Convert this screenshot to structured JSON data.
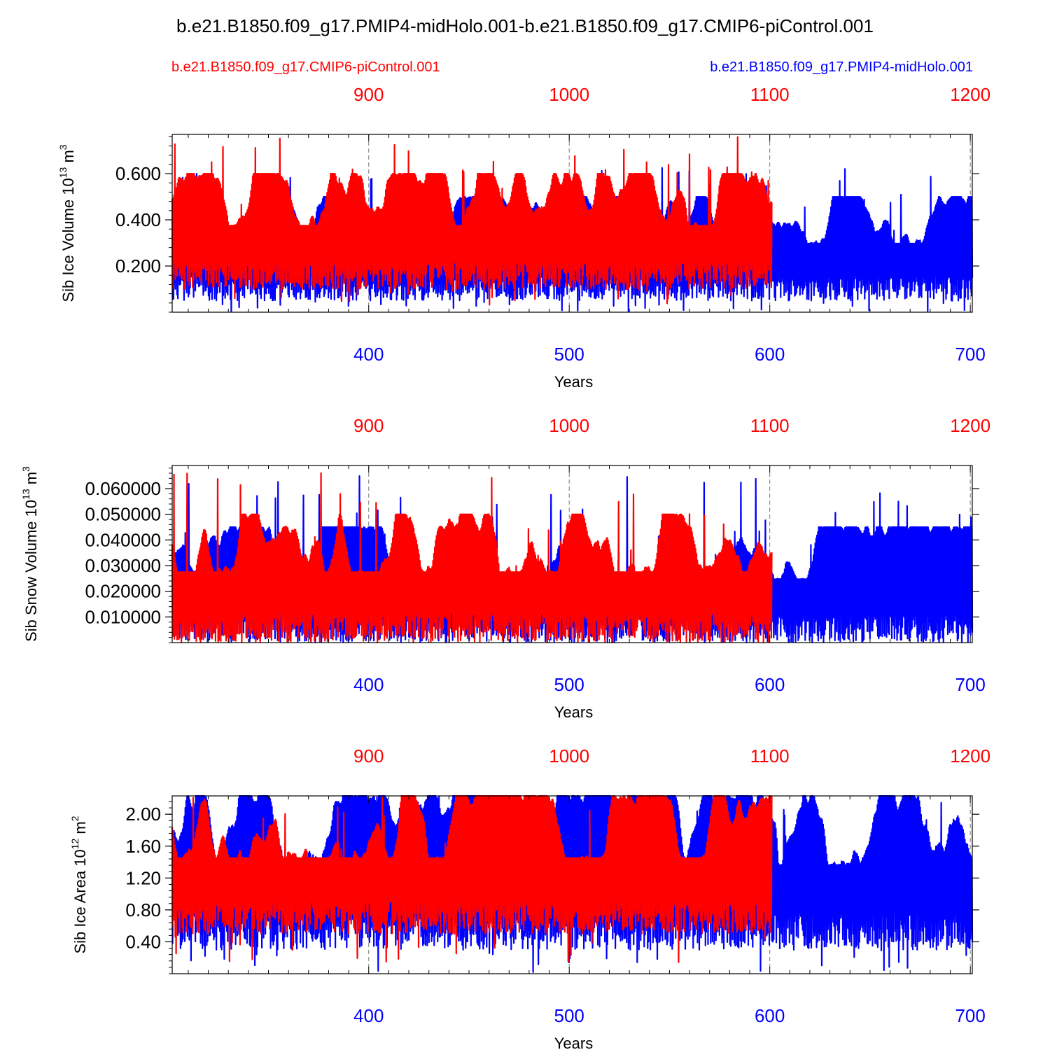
{
  "figure": {
    "title": "b.e21.B1850.f09_g17.PMIP4-midHolo.001-b.e21.B1850.f09_g17.CMIP6-piControl.001",
    "legend_red": "b.e21.B1850.f09_g17.CMIP6-piControl.001",
    "legend_blue": "b.e21.B1850.f09_g17.PMIP4-midHolo.001"
  },
  "colors": {
    "red_series": "#ff0000",
    "blue_series": "#0000ff",
    "axis": "#000000"
  },
  "chart_data": [
    {
      "type": "line",
      "ylabel": "Sib Ice Volume 10^13 m^3",
      "ylabel_main": "Sib Ice Volume 10",
      "ylabel_exp": "13",
      "ylabel_unit": " m",
      "ylabel_unit_exp": "3",
      "xlabel": "Years",
      "ylim": [
        0.0,
        0.77
      ],
      "yticks": [
        0.2,
        0.4,
        0.6
      ],
      "ytick_labels": [
        "0.200",
        "0.400",
        "0.600"
      ],
      "bottom_xlim": [
        302,
        701
      ],
      "bottom_xticks": [
        400,
        500,
        600,
        700
      ],
      "bottom_xtick_labels": [
        "400",
        "500",
        "600",
        "700"
      ],
      "top_xlim": [
        802,
        1201
      ],
      "top_xticks": [
        900,
        1000,
        1100,
        1200
      ],
      "top_xtick_labels": [
        "900",
        "1000",
        "1100",
        "1200"
      ],
      "series": [
        {
          "name": "b.e21.B1850.f09_g17.PMIP4-midHolo.001",
          "color": "blue",
          "x_range": [
            302,
            701
          ],
          "min": 0.0,
          "max": 0.63,
          "typical_low": 0.05,
          "typical_high": 0.5
        },
        {
          "name": "b.e21.B1850.f09_g17.CMIP6-piControl.001",
          "color": "red",
          "x_range": [
            802,
            1101
          ],
          "min": 0.03,
          "max": 0.77,
          "typical_low": 0.1,
          "typical_high": 0.6
        }
      ]
    },
    {
      "type": "line",
      "ylabel": "Sib Snow Volume 10^13 m^3",
      "ylabel_main": "Sib Snow Volume 10",
      "ylabel_exp": "13",
      "ylabel_unit": " m",
      "ylabel_unit_exp": "3",
      "xlabel": "Years",
      "ylim": [
        0.0,
        0.069
      ],
      "yticks": [
        0.01,
        0.02,
        0.03,
        0.04,
        0.05,
        0.06
      ],
      "ytick_labels": [
        "0.010000",
        "0.020000",
        "0.030000",
        "0.040000",
        "0.050000",
        "0.060000"
      ],
      "bottom_xlim": [
        302,
        701
      ],
      "bottom_xticks": [
        400,
        500,
        600,
        700
      ],
      "bottom_xtick_labels": [
        "400",
        "500",
        "600",
        "700"
      ],
      "top_xlim": [
        802,
        1201
      ],
      "top_xticks": [
        900,
        1000,
        1100,
        1200
      ],
      "top_xtick_labels": [
        "900",
        "1000",
        "1100",
        "1200"
      ],
      "series": [
        {
          "name": "b.e21.B1850.f09_g17.PMIP4-midHolo.001",
          "color": "blue",
          "x_range": [
            302,
            701
          ],
          "min": 0.0,
          "max": 0.065,
          "typical_low": 0.0,
          "typical_high": 0.045
        },
        {
          "name": "b.e21.B1850.f09_g17.CMIP6-piControl.001",
          "color": "red",
          "x_range": [
            802,
            1101
          ],
          "min": 0.0,
          "max": 0.069,
          "typical_low": 0.0,
          "typical_high": 0.05
        }
      ]
    },
    {
      "type": "line",
      "ylabel": "Sib Ice Area 10^12 m^2",
      "ylabel_main": "Sib Ice Area 10",
      "ylabel_exp": "12",
      "ylabel_unit": " m",
      "ylabel_unit_exp": "2",
      "xlabel": "Years",
      "ylim": [
        0.0,
        2.23
      ],
      "yticks": [
        0.4,
        0.8,
        1.2,
        1.6,
        2.0
      ],
      "ytick_labels": [
        "0.40",
        "0.80",
        "1.20",
        "1.60",
        "2.00"
      ],
      "bottom_xlim": [
        302,
        701
      ],
      "bottom_xticks": [
        400,
        500,
        600,
        700
      ],
      "bottom_xtick_labels": [
        "400",
        "500",
        "600",
        "700"
      ],
      "top_xlim": [
        802,
        1201
      ],
      "top_xticks": [
        900,
        1000,
        1100,
        1200
      ],
      "top_xtick_labels": [
        "900",
        "1000",
        "1100",
        "1200"
      ],
      "series": [
        {
          "name": "b.e21.B1850.f09_g17.PMIP4-midHolo.001",
          "color": "blue",
          "x_range": [
            302,
            701
          ],
          "min": 0.0,
          "max": 2.23,
          "typical_low": 0.3,
          "typical_high": 2.23
        },
        {
          "name": "b.e21.B1850.f09_g17.CMIP6-piControl.001",
          "color": "red",
          "x_range": [
            802,
            1101
          ],
          "min": 0.1,
          "max": 2.23,
          "typical_low": 0.5,
          "typical_high": 2.23
        }
      ]
    }
  ]
}
